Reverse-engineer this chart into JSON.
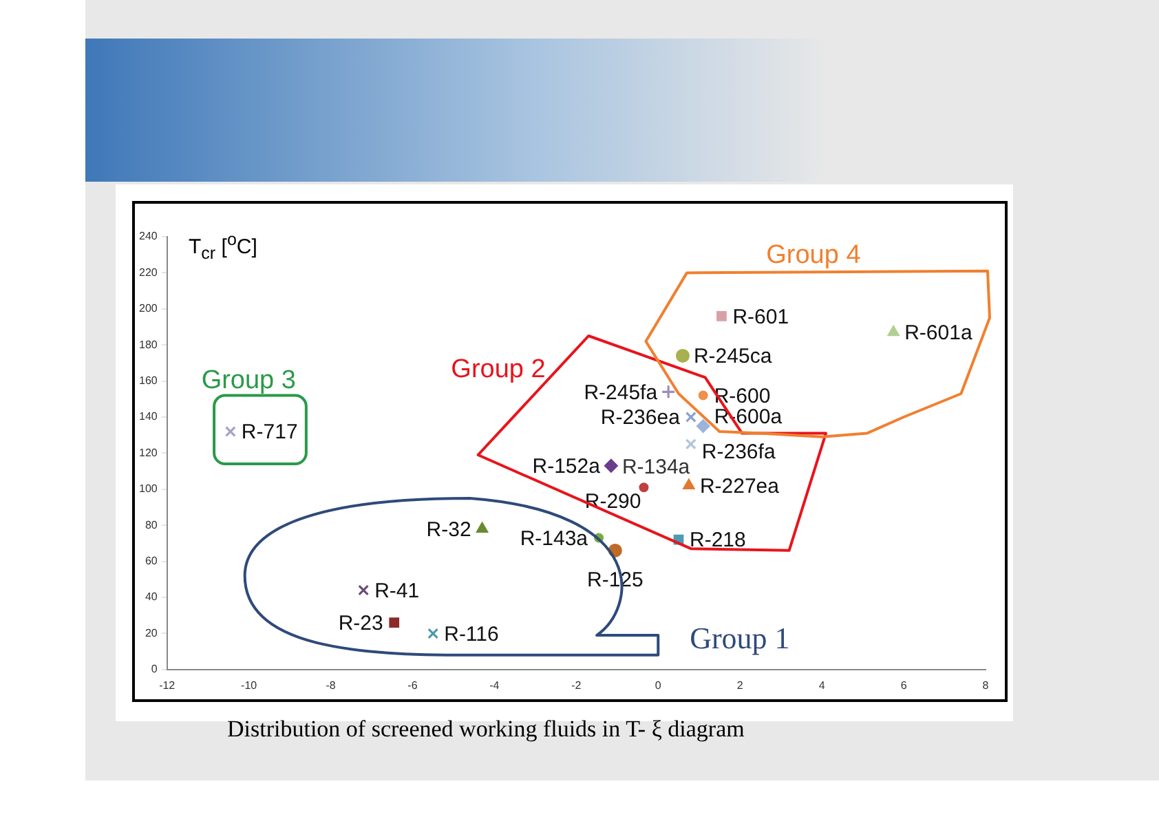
{
  "chart_data": {
    "type": "scatter",
    "ylabel": "T$_{cr}$ [$^{o}$C]",
    "xlim": [
      -12,
      8
    ],
    "ylim": [
      0,
      240
    ],
    "xticks": [
      -12,
      -10,
      -8,
      -6,
      -4,
      -2,
      0,
      2,
      4,
      6,
      8
    ],
    "yticks": [
      0,
      20,
      40,
      60,
      80,
      100,
      120,
      140,
      160,
      180,
      200,
      220,
      240
    ],
    "grid": false,
    "series": [
      {
        "name": "R-717",
        "color": "#a9a0c8",
        "marker": "cross",
        "x": [
          -10.45
        ],
        "values": [
          132
        ]
      },
      {
        "name": "R-41",
        "color": "#6b4c7a",
        "marker": "cross",
        "x": [
          -7.2
        ],
        "values": [
          44
        ]
      },
      {
        "name": "R-23",
        "color": "#8b2a2a",
        "marker": "square",
        "x": [
          -6.45
        ],
        "values": [
          26
        ]
      },
      {
        "name": "R-116",
        "color": "#4a9aaa",
        "marker": "cross",
        "x": [
          -5.5
        ],
        "values": [
          20
        ]
      },
      {
        "name": "R-32",
        "color": "#6a8a30",
        "marker": "triangle",
        "x": [
          -4.3
        ],
        "values": [
          78
        ]
      },
      {
        "name": "R-143a",
        "color": "#7aaa40",
        "x": [
          -1.45
        ],
        "values": [
          73
        ]
      },
      {
        "name": "R-125",
        "color": "#c06a28",
        "marker": "circle",
        "x": [
          -1.05
        ],
        "values": [
          66
        ]
      },
      {
        "name": "R-152a",
        "color": "#6a3c8a",
        "marker": "diamond",
        "x": [
          -1.15
        ],
        "values": [
          113
        ]
      },
      {
        "name": "R-290",
        "color": "#c04040",
        "x": [
          -0.35
        ],
        "values": [
          101
        ]
      },
      {
        "name": "R-245fa",
        "color": "#9a8cc0",
        "marker": "plus",
        "x": [
          0.25
        ],
        "values": [
          154
        ]
      },
      {
        "name": "R-245ca",
        "color": "#a8b050",
        "marker": "circle",
        "x": [
          0.6
        ],
        "values": [
          174
        ]
      },
      {
        "name": "R-601",
        "color": "#d8a0a8",
        "marker": "square",
        "x": [
          1.55
        ],
        "values": [
          196
        ]
      },
      {
        "name": "R-600",
        "color": "#f0904a",
        "x": [
          1.1
        ],
        "values": [
          152
        ]
      },
      {
        "name": "R-236ea",
        "color": "#8aa0d0",
        "marker": "cross",
        "x": [
          0.8
        ],
        "values": [
          140
        ]
      },
      {
        "name": "R-600a",
        "color": "#9ab4dc",
        "marker": "diamond",
        "x": [
          1.1
        ],
        "values": [
          135
        ]
      },
      {
        "name": "R-236fa",
        "color": "#b0c4dc",
        "marker": "cross",
        "x": [
          0.8
        ],
        "values": [
          125
        ]
      },
      {
        "name": "R-227ea",
        "color": "#e07830",
        "marker": "triangle",
        "x": [
          0.75
        ],
        "values": [
          102
        ]
      },
      {
        "name": "R-218",
        "color": "#4a9ab8",
        "marker": "square",
        "x": [
          0.5
        ],
        "values": [
          72
        ]
      },
      {
        "name": "R-601a",
        "color": "#b0d090",
        "marker": "triangle",
        "x": [
          5.75
        ],
        "values": [
          187
        ]
      }
    ],
    "annotations": [
      {
        "text": "R-134a",
        "x": -1.15,
        "y": 113
      },
      "Group 1",
      "Group 2",
      "Group 3",
      "Group 4",
      "Distribution of screened working fluids in T- ξ diagram"
    ]
  }
}
